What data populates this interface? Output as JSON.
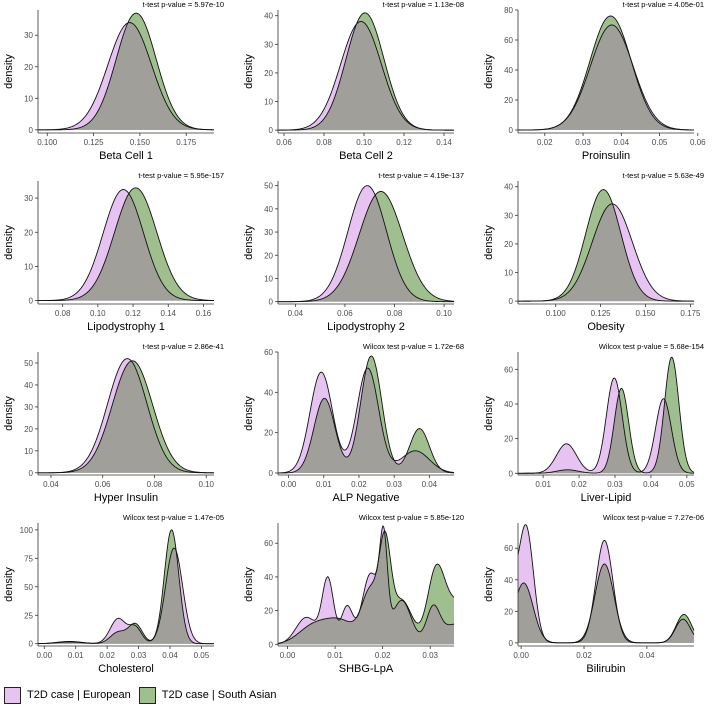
{
  "colors": {
    "european": "#e7c3f2",
    "south_asian": "#9fbf8f",
    "overlap": "#a09f99",
    "outline": "#111111"
  },
  "legend": {
    "items": [
      {
        "label": "T2D case | European",
        "color": "#e7c3f2"
      },
      {
        "label": "T2D case | South Asian",
        "color": "#9fbf8f"
      }
    ]
  },
  "chart_data": [
    {
      "type": "area",
      "title": "t-test p-value = 5.97e-10",
      "xlabel": "Beta Cell 1",
      "ylabel": "density",
      "xlim": [
        0.095,
        0.19
      ],
      "ylim": [
        -1,
        38
      ],
      "xticks": [
        0.1,
        0.125,
        0.15,
        0.175
      ],
      "xtick_labels": [
        "0.100",
        "0.125",
        "0.150",
        "0.175"
      ],
      "yticks": [
        0,
        10,
        20,
        30
      ],
      "ytick_labels": [
        "0",
        "10",
        "20",
        "30"
      ],
      "series": [
        {
          "name": "T2D case | European",
          "components": [
            {
              "mean": 0.1445,
              "sd": 0.0118,
              "weight": 1
            }
          ],
          "peak": 34
        },
        {
          "name": "T2D case | South Asian",
          "components": [
            {
              "mean": 0.148,
              "sd": 0.0108,
              "weight": 1
            }
          ],
          "peak": 37
        }
      ]
    },
    {
      "type": "area",
      "title": "t-test p-value = 1.13e-08",
      "xlabel": "Beta Cell 2",
      "ylabel": "density",
      "xlim": [
        0.057,
        0.145
      ],
      "ylim": [
        -1,
        42
      ],
      "xticks": [
        0.06,
        0.08,
        0.1,
        0.12,
        0.14
      ],
      "xtick_labels": [
        "0.06",
        "0.08",
        "0.10",
        "0.12",
        "0.14"
      ],
      "yticks": [
        0,
        10,
        20,
        30,
        40
      ],
      "ytick_labels": [
        "0",
        "10",
        "20",
        "30",
        "40"
      ],
      "series": [
        {
          "name": "T2D case | European",
          "components": [
            {
              "mean": 0.0985,
              "sd": 0.0102,
              "weight": 1
            }
          ],
          "peak": 38
        },
        {
          "name": "T2D case | South Asian",
          "components": [
            {
              "mean": 0.1005,
              "sd": 0.0095,
              "weight": 1
            }
          ],
          "peak": 41
        }
      ]
    },
    {
      "type": "area",
      "title": "t-test p-value = 4.05e-01",
      "xlabel": "Proinsulin",
      "ylabel": "density",
      "xlim": [
        0.013,
        0.059
      ],
      "ylim": [
        -2,
        80
      ],
      "xticks": [
        0.02,
        0.03,
        0.04,
        0.05,
        0.06
      ],
      "xtick_labels": [
        "0.02",
        "0.03",
        "0.04",
        "0.05",
        "0.06"
      ],
      "yticks": [
        0,
        20,
        40,
        60,
        80
      ],
      "ytick_labels": [
        "0",
        "20",
        "40",
        "60",
        "80"
      ],
      "series": [
        {
          "name": "T2D case | European",
          "components": [
            {
              "mean": 0.0375,
              "sd": 0.0056,
              "weight": 1
            }
          ],
          "peak": 70
        },
        {
          "name": "T2D case | South Asian",
          "components": [
            {
              "mean": 0.0372,
              "sd": 0.0054,
              "weight": 1
            }
          ],
          "peak": 76
        }
      ]
    },
    {
      "type": "area",
      "title": "t-test p-value = 5.95e-157",
      "xlabel": "Lipodystrophy 1",
      "ylabel": "density",
      "xlim": [
        0.066,
        0.166
      ],
      "ylim": [
        -1,
        35
      ],
      "xticks": [
        0.08,
        0.1,
        0.12,
        0.14,
        0.16
      ],
      "xtick_labels": [
        "0.08",
        "0.10",
        "0.12",
        "0.14",
        "0.16"
      ],
      "yticks": [
        0,
        10,
        20,
        30
      ],
      "ytick_labels": [
        "0",
        "10",
        "20",
        "30"
      ],
      "series": [
        {
          "name": "T2D case | European",
          "components": [
            {
              "mean": 0.1145,
              "sd": 0.0115,
              "weight": 1
            }
          ],
          "peak": 32.5
        },
        {
          "name": "T2D case | South Asian",
          "components": [
            {
              "mean": 0.1215,
              "sd": 0.012,
              "weight": 1
            }
          ],
          "peak": 33
        }
      ]
    },
    {
      "type": "area",
      "title": "t-test p-value = 4.19e-137",
      "xlabel": "Lipodystrophy 2",
      "ylabel": "density",
      "xlim": [
        0.033,
        0.104
      ],
      "ylim": [
        -1,
        52
      ],
      "xticks": [
        0.04,
        0.06,
        0.08,
        0.1
      ],
      "xtick_labels": [
        "0.04",
        "0.06",
        "0.08",
        "0.10"
      ],
      "yticks": [
        0,
        10,
        20,
        30,
        40,
        50
      ],
      "ytick_labels": [
        "0",
        "10",
        "20",
        "30",
        "40",
        "50"
      ],
      "series": [
        {
          "name": "T2D case | European",
          "components": [
            {
              "mean": 0.069,
              "sd": 0.0078,
              "weight": 1
            }
          ],
          "peak": 50
        },
        {
          "name": "T2D case | South Asian",
          "components": [
            {
              "mean": 0.0745,
              "sd": 0.0088,
              "weight": 1
            }
          ],
          "peak": 47.5
        }
      ]
    },
    {
      "type": "area",
      "title": "t-test p-value = 5.63e-49",
      "xlabel": "Obesity",
      "ylabel": "density",
      "xlim": [
        0.079,
        0.177
      ],
      "ylim": [
        -1,
        42
      ],
      "xticks": [
        0.1,
        0.125,
        0.15,
        0.175
      ],
      "xtick_labels": [
        "0.100",
        "0.125",
        "0.150",
        "0.175"
      ],
      "yticks": [
        0,
        10,
        20,
        30,
        40
      ],
      "ytick_labels": [
        "0",
        "10",
        "20",
        "30",
        "40"
      ],
      "series": [
        {
          "name": "T2D case | European",
          "components": [
            {
              "mean": 0.1315,
              "sd": 0.0112,
              "weight": 1
            }
          ],
          "peak": 34
        },
        {
          "name": "T2D case | South Asian",
          "components": [
            {
              "mean": 0.1265,
              "sd": 0.0098,
              "weight": 1
            }
          ],
          "peak": 39
        }
      ]
    },
    {
      "type": "area",
      "title": "t-test p-value = 2.86e-41",
      "xlabel": "Hyper Insulin",
      "ylabel": "density",
      "xlim": [
        0.035,
        0.103
      ],
      "ylim": [
        -1,
        55
      ],
      "xticks": [
        0.04,
        0.06,
        0.08,
        0.1
      ],
      "xtick_labels": [
        "0.04",
        "0.06",
        "0.08",
        "0.10"
      ],
      "yticks": [
        0,
        10,
        20,
        30,
        40,
        50
      ],
      "ytick_labels": [
        "0",
        "10",
        "20",
        "30",
        "40",
        "50"
      ],
      "series": [
        {
          "name": "T2D case | European",
          "components": [
            {
              "mean": 0.0695,
              "sd": 0.0076,
              "weight": 1
            }
          ],
          "peak": 52
        },
        {
          "name": "T2D case | South Asian",
          "components": [
            {
              "mean": 0.0715,
              "sd": 0.0078,
              "weight": 1
            }
          ],
          "peak": 51
        }
      ]
    },
    {
      "type": "area",
      "title": "Wilcox test p-value = 1.72e-68",
      "xlabel": "ALP Negative",
      "ylabel": "density",
      "xlim": [
        -0.003,
        0.047
      ],
      "ylim": [
        -1,
        60
      ],
      "xticks": [
        0.0,
        0.01,
        0.02,
        0.03,
        0.04
      ],
      "xtick_labels": [
        "0.00",
        "0.01",
        "0.02",
        "0.03",
        "0.04"
      ],
      "yticks": [
        0,
        20,
        40,
        60
      ],
      "ytick_labels": [
        "0",
        "20",
        "40",
        "60"
      ],
      "series": [
        {
          "name": "T2D case | European",
          "components": [
            {
              "mean": 0.0093,
              "sd": 0.0032,
              "weight": 50
            },
            {
              "mean": 0.0225,
              "sd": 0.0031,
              "weight": 52
            },
            {
              "mean": 0.036,
              "sd": 0.004,
              "weight": 11
            }
          ]
        },
        {
          "name": "T2D case | South Asian",
          "components": [
            {
              "mean": 0.0102,
              "sd": 0.003,
              "weight": 37
            },
            {
              "mean": 0.0235,
              "sd": 0.003,
              "weight": 58
            },
            {
              "mean": 0.0372,
              "sd": 0.0028,
              "weight": 22
            }
          ]
        }
      ]
    },
    {
      "type": "area",
      "title": "Wilcox test p-value = 5.68e-154",
      "xlabel": "Liver-Lipid",
      "ylabel": "density",
      "xlim": [
        0.003,
        0.052
      ],
      "ylim": [
        -1,
        70
      ],
      "xticks": [
        0.01,
        0.02,
        0.03,
        0.04,
        0.05
      ],
      "xtick_labels": [
        "0.01",
        "0.02",
        "0.03",
        "0.04",
        "0.05"
      ],
      "yticks": [
        0,
        20,
        40,
        60
      ],
      "ytick_labels": [
        "0",
        "20",
        "40",
        "60"
      ],
      "series": [
        {
          "name": "T2D case | European",
          "components": [
            {
              "mean": 0.0165,
              "sd": 0.0028,
              "weight": 17
            },
            {
              "mean": 0.0298,
              "sd": 0.0022,
              "weight": 55
            },
            {
              "mean": 0.0435,
              "sd": 0.0022,
              "weight": 43
            }
          ]
        },
        {
          "name": "T2D case | South Asian",
          "components": [
            {
              "mean": 0.0168,
              "sd": 0.003,
              "weight": 2
            },
            {
              "mean": 0.0318,
              "sd": 0.002,
              "weight": 49
            },
            {
              "mean": 0.0458,
              "sd": 0.002,
              "weight": 67
            }
          ]
        }
      ]
    },
    {
      "type": "area",
      "title": "Wilcox test p-value = 1.47e-05",
      "xlabel": "Cholesterol",
      "ylabel": "density",
      "xlim": [
        -0.002,
        0.054
      ],
      "ylim": [
        -2,
        106
      ],
      "xticks": [
        0.0,
        0.01,
        0.02,
        0.03,
        0.04,
        0.05
      ],
      "xtick_labels": [
        "0.00",
        "0.01",
        "0.02",
        "0.03",
        "0.04",
        "0.05"
      ],
      "yticks": [
        0,
        25,
        50,
        75,
        100
      ],
      "ytick_labels": [
        "0",
        "25",
        "50",
        "75",
        "100"
      ],
      "series": [
        {
          "name": "T2D case | European",
          "components": [
            {
              "mean": 0.008,
              "sd": 0.004,
              "weight": 2
            },
            {
              "mean": 0.0235,
              "sd": 0.0025,
              "weight": 22
            },
            {
              "mean": 0.029,
              "sd": 0.002,
              "weight": 14
            },
            {
              "mean": 0.0413,
              "sd": 0.0027,
              "weight": 84
            }
          ]
        },
        {
          "name": "T2D case | South Asian",
          "components": [
            {
              "mean": 0.008,
              "sd": 0.004,
              "weight": 1.5
            },
            {
              "mean": 0.0235,
              "sd": 0.0025,
              "weight": 10
            },
            {
              "mean": 0.029,
              "sd": 0.0022,
              "weight": 17
            },
            {
              "mean": 0.0405,
              "sd": 0.0023,
              "weight": 100
            }
          ]
        }
      ]
    },
    {
      "type": "area",
      "title": "Wilcox test p-value = 5.85e-120",
      "xlabel": "SHBG-LpA",
      "ylabel": "density",
      "xlim": [
        -0.002,
        0.035
      ],
      "ylim": [
        -1,
        72
      ],
      "xticks": [
        0.0,
        0.01,
        0.02,
        0.03
      ],
      "xtick_labels": [
        "0.00",
        "0.01",
        "0.02",
        "0.03"
      ],
      "yticks": [
        0,
        20,
        40,
        60
      ],
      "ytick_labels": [
        "0",
        "20",
        "40",
        "60"
      ],
      "series": [
        {
          "name": "T2D case | European",
          "components": [
            {
              "mean": 0.004,
              "sd": 0.0022,
              "weight": 16
            },
            {
              "mean": 0.0085,
              "sd": 0.0012,
              "weight": 38
            },
            {
              "mean": 0.0125,
              "sd": 0.0012,
              "weight": 22
            },
            {
              "mean": 0.0175,
              "sd": 0.0018,
              "weight": 42
            },
            {
              "mean": 0.0202,
              "sd": 0.0008,
              "weight": 52
            },
            {
              "mean": 0.024,
              "sd": 0.002,
              "weight": 26
            },
            {
              "mean": 0.0306,
              "sd": 0.0014,
              "weight": 20
            },
            {
              "mean": 0.0355,
              "sd": 0.003,
              "weight": 12
            }
          ]
        },
        {
          "name": "T2D case | South Asian",
          "components": [
            {
              "mean": 0.005,
              "sd": 0.003,
              "weight": 9
            },
            {
              "mean": 0.011,
              "sd": 0.0035,
              "weight": 14
            },
            {
              "mean": 0.0175,
              "sd": 0.0018,
              "weight": 30
            },
            {
              "mean": 0.0205,
              "sd": 0.0012,
              "weight": 52
            },
            {
              "mean": 0.024,
              "sd": 0.0022,
              "weight": 26
            },
            {
              "mean": 0.0312,
              "sd": 0.0018,
              "weight": 40
            },
            {
              "mean": 0.036,
              "sd": 0.003,
              "weight": 25
            }
          ]
        }
      ]
    },
    {
      "type": "area",
      "title": "Wilcox test p-value = 7.27e-06",
      "xlabel": "Bilirubin",
      "ylabel": "density",
      "xlim": [
        -0.001,
        0.055
      ],
      "ylim": [
        -2,
        76
      ],
      "xticks": [
        0.0,
        0.02,
        0.04
      ],
      "xtick_labels": [
        "0.00",
        "0.02",
        "0.04"
      ],
      "yticks": [
        0,
        20,
        40,
        60
      ],
      "ytick_labels": [
        "0",
        "20",
        "40",
        "60"
      ],
      "series": [
        {
          "name": "T2D case | European",
          "components": [
            {
              "mean": 0.0015,
              "sd": 0.0024,
              "weight": 74
            },
            {
              "mean": 0.0265,
              "sd": 0.0027,
              "weight": 65
            },
            {
              "mean": 0.0515,
              "sd": 0.0024,
              "weight": 15
            },
            {
              "mean": -0.004,
              "sd": 0.002,
              "weight": 40
            }
          ]
        },
        {
          "name": "T2D case | South Asian",
          "components": [
            {
              "mean": 0.0008,
              "sd": 0.003,
              "weight": 38
            },
            {
              "mean": 0.0265,
              "sd": 0.003,
              "weight": 50
            },
            {
              "mean": 0.0518,
              "sd": 0.0025,
              "weight": 18
            }
          ]
        }
      ]
    }
  ]
}
